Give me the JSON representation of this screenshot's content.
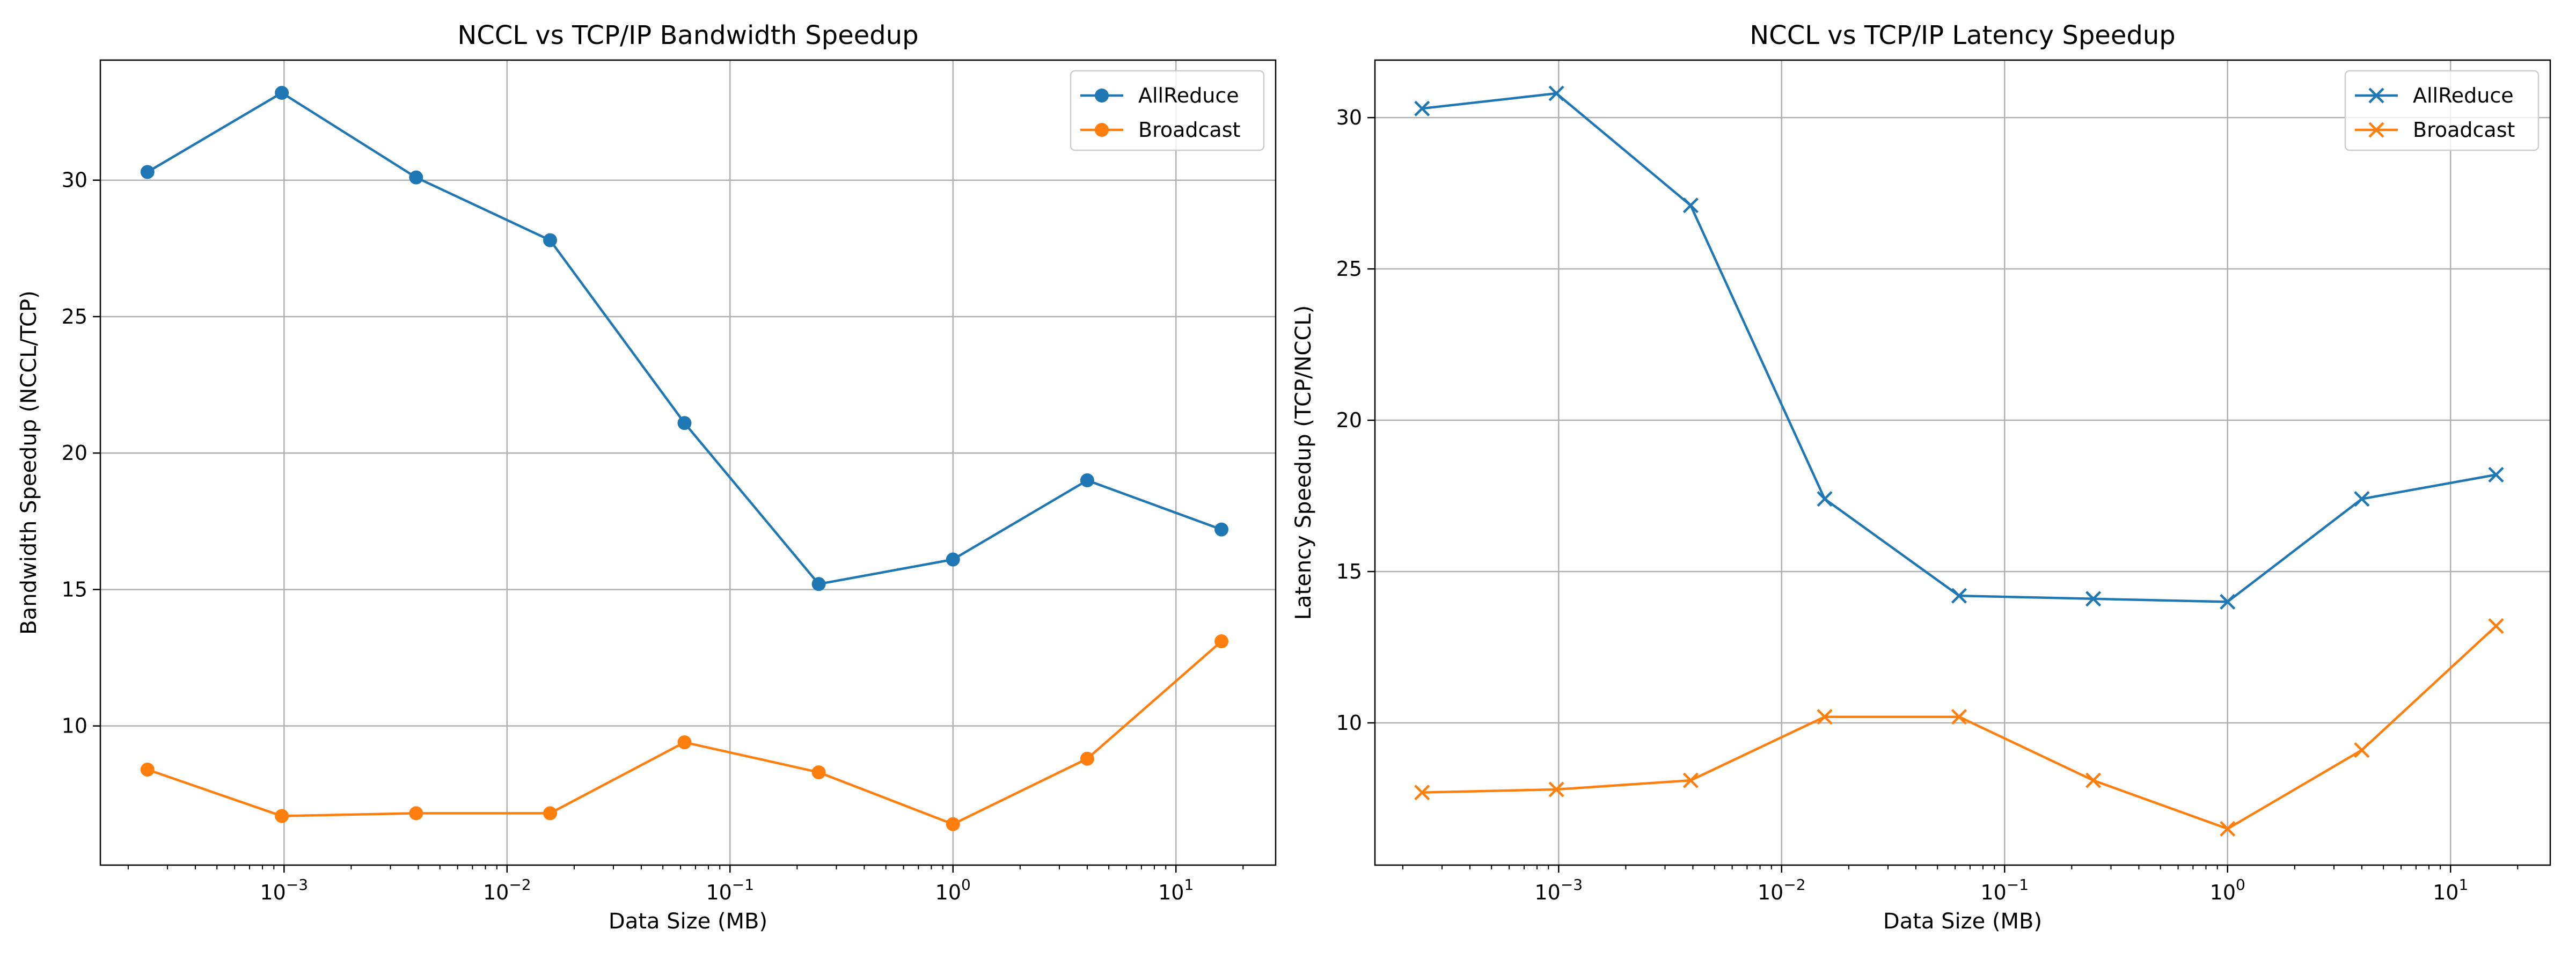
{
  "colors": {
    "allreduce": "#1f77b4",
    "broadcast": "#ff7f0e",
    "grid": "#b0b0b0",
    "axis": "#000000"
  },
  "chart_data": [
    {
      "type": "line",
      "title": "NCCL vs TCP/IP Bandwidth Speedup",
      "xlabel": "Data Size (MB)",
      "ylabel": "Bandwidth Speedup (NCCL/TCP)",
      "xscale": "log",
      "xlim": [
        0.00015,
        28
      ],
      "ylim": [
        4.9,
        34.4
      ],
      "xticks": [
        0.001,
        0.01,
        0.1,
        1,
        10
      ],
      "xtick_labels": [
        {
          "base": "10",
          "exp": "−3"
        },
        {
          "base": "10",
          "exp": "−2"
        },
        {
          "base": "10",
          "exp": "−1"
        },
        {
          "base": "10",
          "exp": "0"
        },
        {
          "base": "10",
          "exp": "1"
        }
      ],
      "yticks": [
        10,
        15,
        20,
        25,
        30
      ],
      "ytick_labels": [
        "10",
        "15",
        "20",
        "25",
        "30"
      ],
      "grid": true,
      "legend": "top-right",
      "marker": "circle",
      "x": [
        0.000244,
        0.000977,
        0.00391,
        0.0156,
        0.0625,
        0.25,
        1,
        4,
        16
      ],
      "series": [
        {
          "name": "AllReduce",
          "color_key": "allreduce",
          "values": [
            30.3,
            33.2,
            30.1,
            27.8,
            21.1,
            15.2,
            16.1,
            19.0,
            17.2
          ]
        },
        {
          "name": "Broadcast",
          "color_key": "broadcast",
          "values": [
            8.4,
            6.7,
            6.8,
            6.8,
            9.4,
            8.3,
            6.4,
            8.8,
            13.1
          ]
        }
      ]
    },
    {
      "type": "line",
      "title": "NCCL vs TCP/IP Latency Speedup",
      "xlabel": "Data Size (MB)",
      "ylabel": "Latency Speedup (TCP/NCCL)",
      "xscale": "log",
      "xlim": [
        0.00015,
        28
      ],
      "ylim": [
        5.3,
        31.9
      ],
      "xticks": [
        0.001,
        0.01,
        0.1,
        1,
        10
      ],
      "xtick_labels": [
        {
          "base": "10",
          "exp": "−3"
        },
        {
          "base": "10",
          "exp": "−2"
        },
        {
          "base": "10",
          "exp": "−1"
        },
        {
          "base": "10",
          "exp": "0"
        },
        {
          "base": "10",
          "exp": "1"
        }
      ],
      "yticks": [
        10,
        15,
        20,
        25,
        30
      ],
      "ytick_labels": [
        "10",
        "15",
        "20",
        "25",
        "30"
      ],
      "grid": true,
      "legend": "top-right",
      "marker": "x",
      "x": [
        0.000244,
        0.000977,
        0.00391,
        0.0156,
        0.0625,
        0.25,
        1,
        4,
        16
      ],
      "series": [
        {
          "name": "AllReduce",
          "color_key": "allreduce",
          "values": [
            30.3,
            30.8,
            27.1,
            17.4,
            14.2,
            14.1,
            14.0,
            17.4,
            18.2
          ]
        },
        {
          "name": "Broadcast",
          "color_key": "broadcast",
          "values": [
            7.7,
            7.8,
            8.1,
            10.2,
            10.2,
            8.1,
            6.5,
            9.1,
            13.2
          ]
        }
      ]
    }
  ]
}
